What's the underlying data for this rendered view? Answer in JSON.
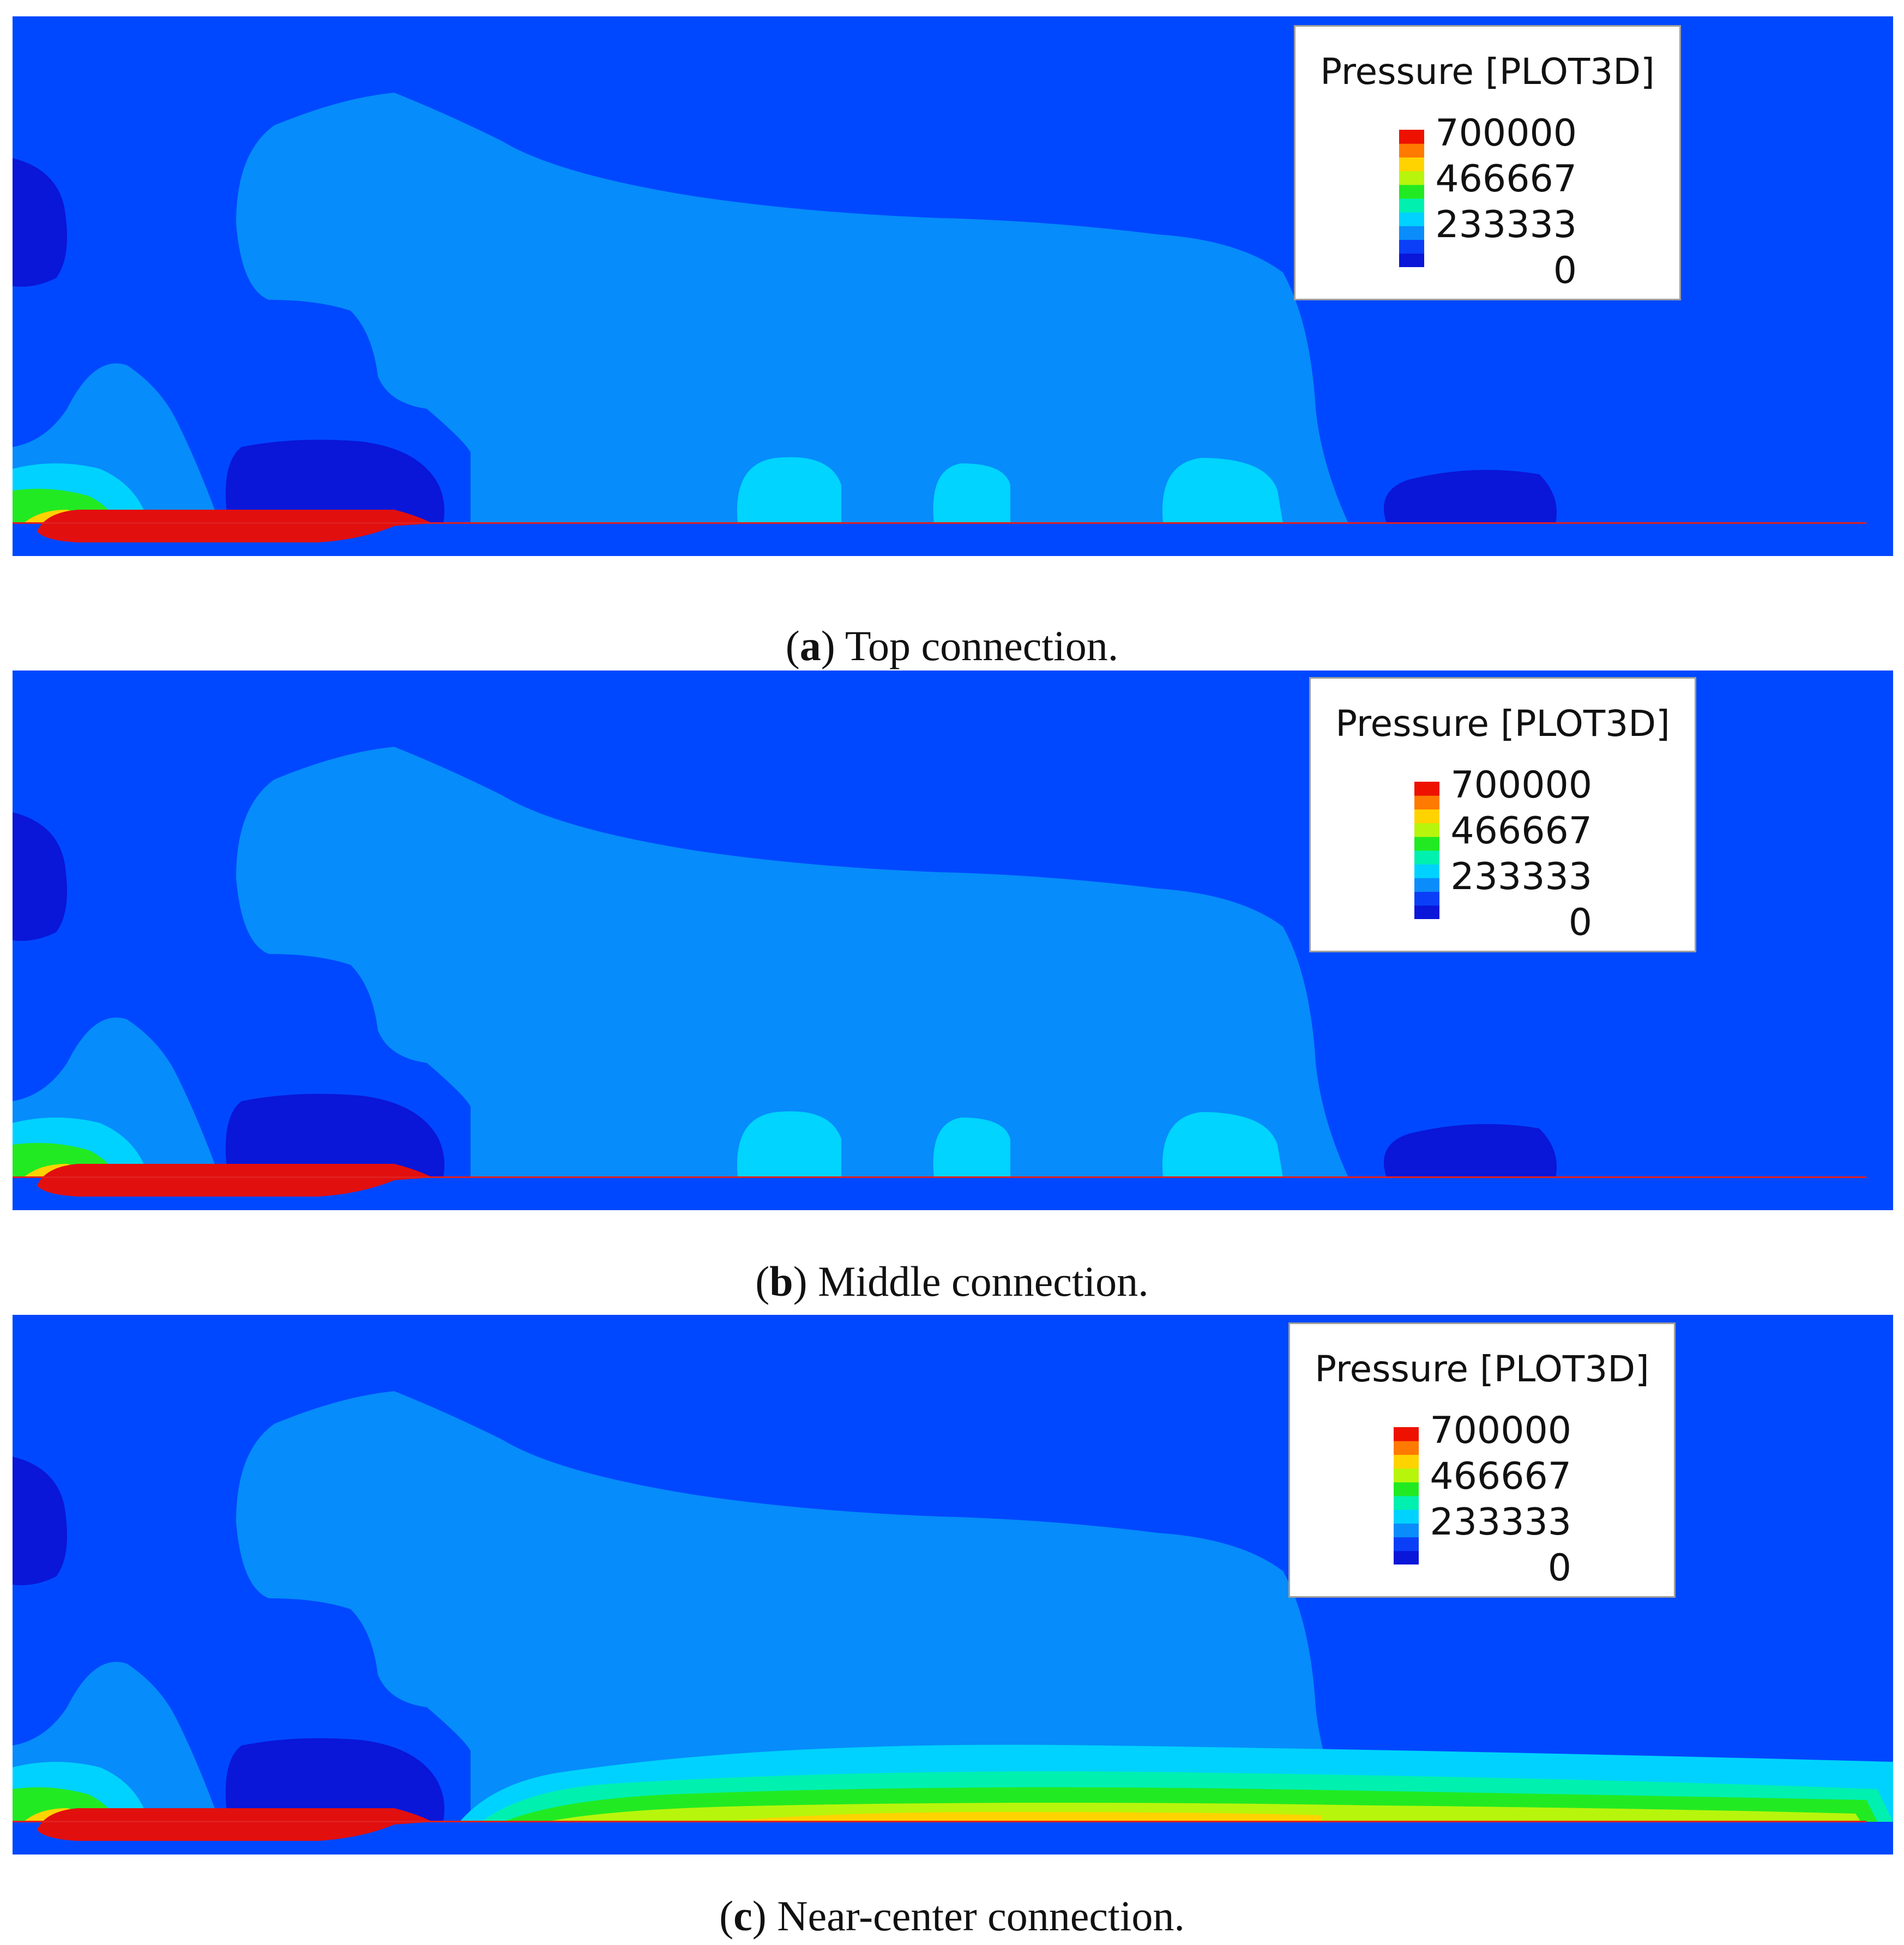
{
  "chart_data": [
    {
      "type": "heatmap",
      "panel": "a",
      "caption_letter": "a",
      "caption_text": " Top connection.",
      "legend": {
        "title": "Pressure [PLOT3D]",
        "ticks": [
          "700000",
          "466667",
          "233333",
          "0"
        ],
        "range": [
          0,
          700000
        ],
        "placement": "top-right"
      },
      "jet_region": "none"
    },
    {
      "type": "heatmap",
      "panel": "b",
      "caption_letter": "b",
      "caption_text": " Middle connection.",
      "legend": {
        "title": "Pressure [PLOT3D]",
        "ticks": [
          "700000",
          "466667",
          "233333",
          "0"
        ],
        "range": [
          0,
          700000
        ],
        "placement": "top-right"
      },
      "jet_region": "none"
    },
    {
      "type": "heatmap",
      "panel": "c",
      "caption_letter": "c",
      "caption_text": " Near-center connection.",
      "legend": {
        "title": "Pressure [PLOT3D]",
        "ticks": [
          "700000",
          "466667",
          "233333",
          "0"
        ],
        "range": [
          0,
          700000
        ],
        "placement": "top-right"
      },
      "jet_region": "high-pressure band along bottom wall"
    }
  ],
  "colormap": [
    "#0a16d8",
    "#0b3ff7",
    "#0a8dfb",
    "#00d2ff",
    "#00f0b0",
    "#22ea22",
    "#b8f50c",
    "#ffd300",
    "#ff7a00",
    "#ee1100"
  ],
  "colors": {
    "background": "#0048ff",
    "low": "#0a16d8",
    "plume": "#068cfb",
    "cyan": "#00d4ff",
    "body": "#e20f0f"
  }
}
